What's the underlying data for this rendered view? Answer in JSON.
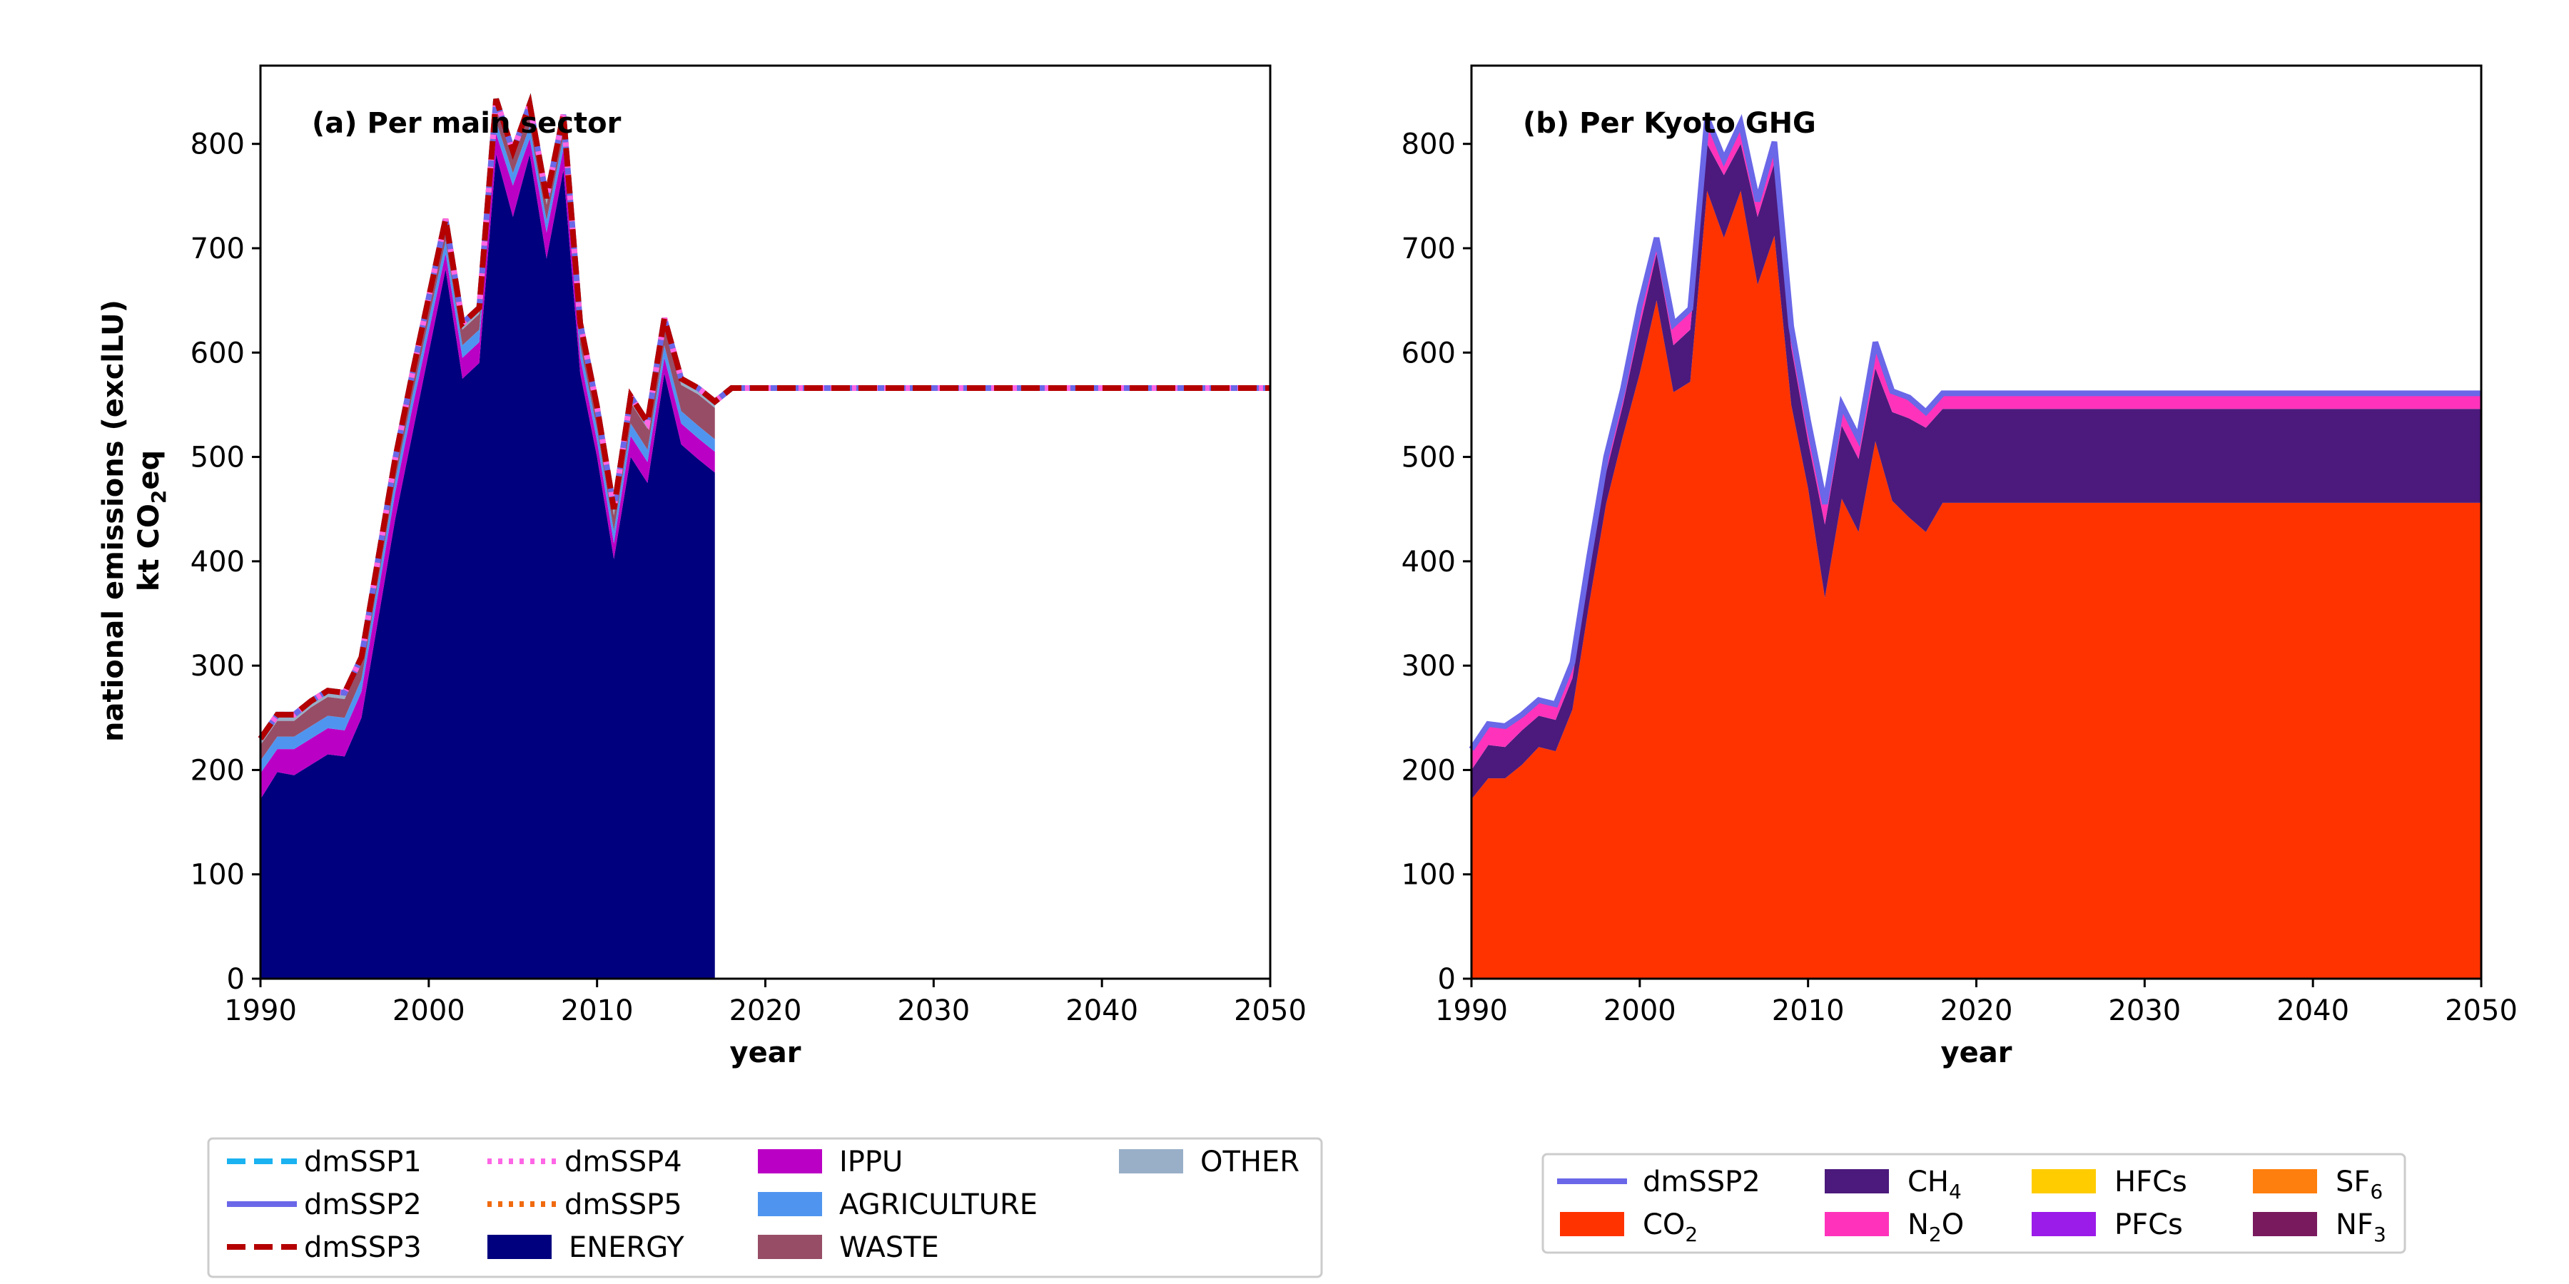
{
  "figure": {
    "ylabel_line1": "national emissions (exclLU)",
    "ylabel_line2_main": "kt CO",
    "ylabel_line2_sub": "2",
    "ylabel_line2_tail": "eq"
  },
  "chart_data": [
    {
      "type": "area",
      "title": "(a) Per main sector",
      "xlabel": "year",
      "ylabel": "national emissions (exclLU) kt CO2eq",
      "xlim": [
        1990,
        2050
      ],
      "ylim": [
        0,
        875
      ],
      "xticks": [
        1990,
        2000,
        2010,
        2020,
        2030,
        2040,
        2050
      ],
      "yticks": [
        0,
        100,
        200,
        300,
        400,
        500,
        600,
        700,
        800
      ],
      "grid": false,
      "legend_position": "below-plot",
      "x": [
        1990,
        1991,
        1992,
        1993,
        1994,
        1995,
        1996,
        1997,
        1998,
        1999,
        2000,
        2001,
        2002,
        2003,
        2004,
        2005,
        2006,
        2007,
        2008,
        2009,
        2010,
        2011,
        2012,
        2013,
        2014,
        2015,
        2016,
        2017
      ],
      "series": [
        {
          "name": "ENERGY",
          "color": "#00007f",
          "values": [
            172,
            198,
            195,
            205,
            215,
            213,
            250,
            345,
            440,
            520,
            600,
            680,
            575,
            590,
            790,
            730,
            790,
            690,
            775,
            580,
            500,
            402,
            500,
            475,
            580,
            512,
            498,
            485
          ]
        },
        {
          "name": "IPPU",
          "color": "#bb00c5",
          "values": [
            25,
            22,
            25,
            25,
            25,
            25,
            25,
            25,
            25,
            25,
            20,
            15,
            20,
            20,
            20,
            30,
            15,
            25,
            20,
            15,
            15,
            15,
            20,
            20,
            15,
            20,
            20,
            20
          ]
        },
        {
          "name": "AGRICULTURE",
          "color": "#4f95f0",
          "values": [
            12,
            12,
            12,
            12,
            12,
            12,
            12,
            12,
            12,
            12,
            12,
            12,
            12,
            12,
            12,
            12,
            12,
            12,
            12,
            12,
            12,
            12,
            12,
            12,
            12,
            12,
            12,
            12
          ]
        },
        {
          "name": "WASTE",
          "color": "#974d66",
          "values": [
            15,
            15,
            15,
            18,
            18,
            18,
            15,
            15,
            15,
            15,
            15,
            15,
            15,
            15,
            15,
            15,
            15,
            15,
            15,
            15,
            15,
            15,
            20,
            20,
            20,
            25,
            30,
            30
          ]
        },
        {
          "name": "OTHER",
          "color": "#98afc7",
          "values": [
            6,
            6,
            6,
            6,
            6,
            6,
            6,
            6,
            6,
            6,
            6,
            6,
            6,
            6,
            6,
            6,
            6,
            6,
            6,
            6,
            6,
            6,
            6,
            6,
            6,
            6,
            6,
            6
          ]
        }
      ],
      "lines": [
        {
          "name": "dmSSP1",
          "color": "#1ab2f0",
          "style": "dashed"
        },
        {
          "name": "dmSSP2",
          "color": "#6a67e8",
          "style": "solid"
        },
        {
          "name": "dmSSP3",
          "color": "#b40000",
          "style": "dashed"
        },
        {
          "name": "dmSSP4",
          "color": "#ff66e6",
          "style": "dotted"
        },
        {
          "name": "dmSSP5",
          "color": "#f06a0f",
          "style": "dotted"
        }
      ],
      "projection": {
        "x": [
          2017,
          2018,
          2050
        ],
        "values": [
          553,
          566,
          566
        ]
      }
    },
    {
      "type": "area",
      "title": "(b) Per Kyoto GHG",
      "xlabel": "year",
      "ylabel": "",
      "xlim": [
        1990,
        2050
      ],
      "ylim": [
        0,
        875
      ],
      "xticks": [
        1990,
        2000,
        2010,
        2020,
        2030,
        2040,
        2050
      ],
      "yticks": [
        0,
        100,
        200,
        300,
        400,
        500,
        600,
        700,
        800
      ],
      "grid": false,
      "legend_position": "below-plot",
      "x": [
        1990,
        1991,
        1992,
        1993,
        1994,
        1995,
        1996,
        1997,
        1998,
        1999,
        2000,
        2001,
        2002,
        2003,
        2004,
        2005,
        2006,
        2007,
        2008,
        2009,
        2010,
        2011,
        2012,
        2013,
        2014,
        2015,
        2016,
        2017,
        2018,
        2050
      ],
      "series": [
        {
          "name": "CO2",
          "label_main": "CO",
          "label_sub": "2",
          "color": "#ff3300",
          "values": [
            172,
            192,
            192,
            205,
            222,
            218,
            258,
            360,
            455,
            520,
            580,
            650,
            562,
            572,
            755,
            710,
            755,
            665,
            712,
            550,
            470,
            365,
            460,
            428,
            515,
            458,
            442,
            428,
            456,
            456
          ]
        },
        {
          "name": "CH4",
          "label_main": "CH",
          "label_sub": "4",
          "color": "#4b1a7c",
          "values": [
            28,
            32,
            30,
            33,
            30,
            30,
            30,
            30,
            30,
            30,
            45,
            45,
            45,
            50,
            45,
            60,
            45,
            65,
            70,
            55,
            45,
            70,
            70,
            70,
            70,
            85,
            95,
            100,
            90,
            90
          ]
        },
        {
          "name": "N2O",
          "label_main": "N",
          "label_sub": "2",
          "label_tail": "O",
          "color": "#ff33bb",
          "values": [
            20,
            20,
            20,
            15,
            15,
            15,
            15,
            15,
            15,
            15,
            20,
            15,
            20,
            20,
            25,
            15,
            20,
            15,
            20,
            20,
            20,
            20,
            20,
            20,
            25,
            20,
            20,
            15,
            15,
            15
          ]
        },
        {
          "name": "HFCs",
          "color": "#ffcc00",
          "values": [
            0,
            0,
            0,
            0,
            0,
            0,
            0,
            0,
            0,
            0,
            0,
            0,
            0,
            0,
            0,
            0,
            0,
            0,
            0,
            0,
            0,
            0,
            0,
            0,
            0,
            0,
            0,
            0,
            0,
            0
          ]
        },
        {
          "name": "PFCs",
          "color": "#9b1be8",
          "values": [
            0,
            0,
            0,
            0,
            0,
            0,
            0,
            0,
            0,
            0,
            0,
            0,
            0,
            0,
            0,
            0,
            0,
            0,
            0,
            0,
            0,
            0,
            0,
            0,
            0,
            0,
            0,
            0,
            0,
            0
          ]
        },
        {
          "name": "SF6",
          "label_main": "SF",
          "label_sub": "6",
          "color": "#ff7f0e",
          "values": [
            0,
            0,
            0,
            0,
            0,
            0,
            0,
            0,
            0,
            0,
            0,
            0,
            0,
            0,
            0,
            0,
            0,
            0,
            0,
            0,
            0,
            0,
            0,
            0,
            0,
            0,
            0,
            0,
            0,
            0
          ]
        },
        {
          "name": "NF3",
          "label_main": "NF",
          "label_sub": "3",
          "color": "#7a1a5e",
          "values": [
            0,
            0,
            0,
            0,
            0,
            0,
            0,
            0,
            0,
            0,
            0,
            0,
            0,
            0,
            0,
            0,
            0,
            0,
            0,
            0,
            0,
            0,
            0,
            0,
            0,
            0,
            0,
            0,
            0,
            0
          ]
        }
      ],
      "lines": [
        {
          "name": "dmSSP2",
          "color": "#6a67e8",
          "style": "solid"
        }
      ]
    }
  ]
}
